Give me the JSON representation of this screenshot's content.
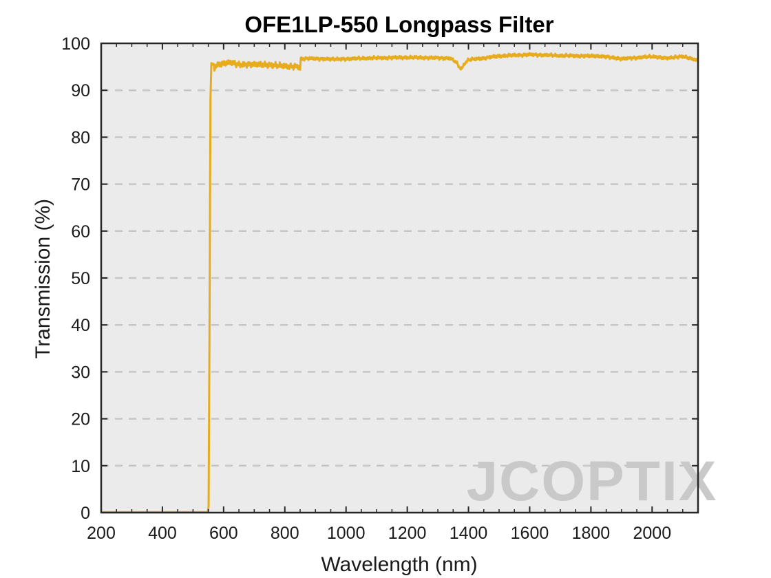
{
  "chart_data": {
    "type": "line",
    "title": "OFE1LP-550 Longpass Filter",
    "xlabel": "Wavelength (nm)",
    "ylabel": "Transmission (%)",
    "xlim": [
      200,
      2150
    ],
    "ylim": [
      0,
      100
    ],
    "xticks": [
      200,
      400,
      600,
      800,
      1000,
      1200,
      1400,
      1600,
      1800,
      2000
    ],
    "yticks": [
      0,
      10,
      20,
      30,
      40,
      50,
      60,
      70,
      80,
      90,
      100
    ],
    "grid": "horizontal dashed",
    "background": "#ebebeb",
    "series": [
      {
        "color": "#e6ac1e",
        "points": [
          [
            200,
            0.1
          ],
          [
            400,
            0.1
          ],
          [
            540,
            0.1
          ],
          [
            549,
            0.2
          ],
          [
            551,
            1.5
          ],
          [
            554,
            40
          ],
          [
            557,
            88
          ],
          [
            560,
            95.8
          ],
          [
            565,
            95.5
          ],
          [
            570,
            94.8
          ],
          [
            580,
            95.4
          ],
          [
            600,
            95.6
          ],
          [
            620,
            95.9
          ],
          [
            650,
            95.5
          ],
          [
            700,
            95.6
          ],
          [
            750,
            95.3
          ],
          [
            800,
            95.2
          ],
          [
            840,
            95.0
          ],
          [
            850,
            94.9
          ],
          [
            852,
            96.7
          ],
          [
            880,
            96.8
          ],
          [
            950,
            96.6
          ],
          [
            1000,
            96.7
          ],
          [
            1100,
            96.9
          ],
          [
            1200,
            97.0
          ],
          [
            1300,
            96.9
          ],
          [
            1340,
            96.8
          ],
          [
            1360,
            96.0
          ],
          [
            1370,
            94.9
          ],
          [
            1378,
            94.5
          ],
          [
            1386,
            95.6
          ],
          [
            1400,
            96.5
          ],
          [
            1430,
            96.7
          ],
          [
            1500,
            97.3
          ],
          [
            1600,
            97.6
          ],
          [
            1700,
            97.4
          ],
          [
            1800,
            97.3
          ],
          [
            1850,
            97.2
          ],
          [
            1900,
            96.7
          ],
          [
            2000,
            97.2
          ],
          [
            2050,
            96.9
          ],
          [
            2100,
            97.2
          ],
          [
            2150,
            96.3
          ]
        ]
      }
    ]
  },
  "watermark": {
    "text": "JCOPTIX"
  }
}
